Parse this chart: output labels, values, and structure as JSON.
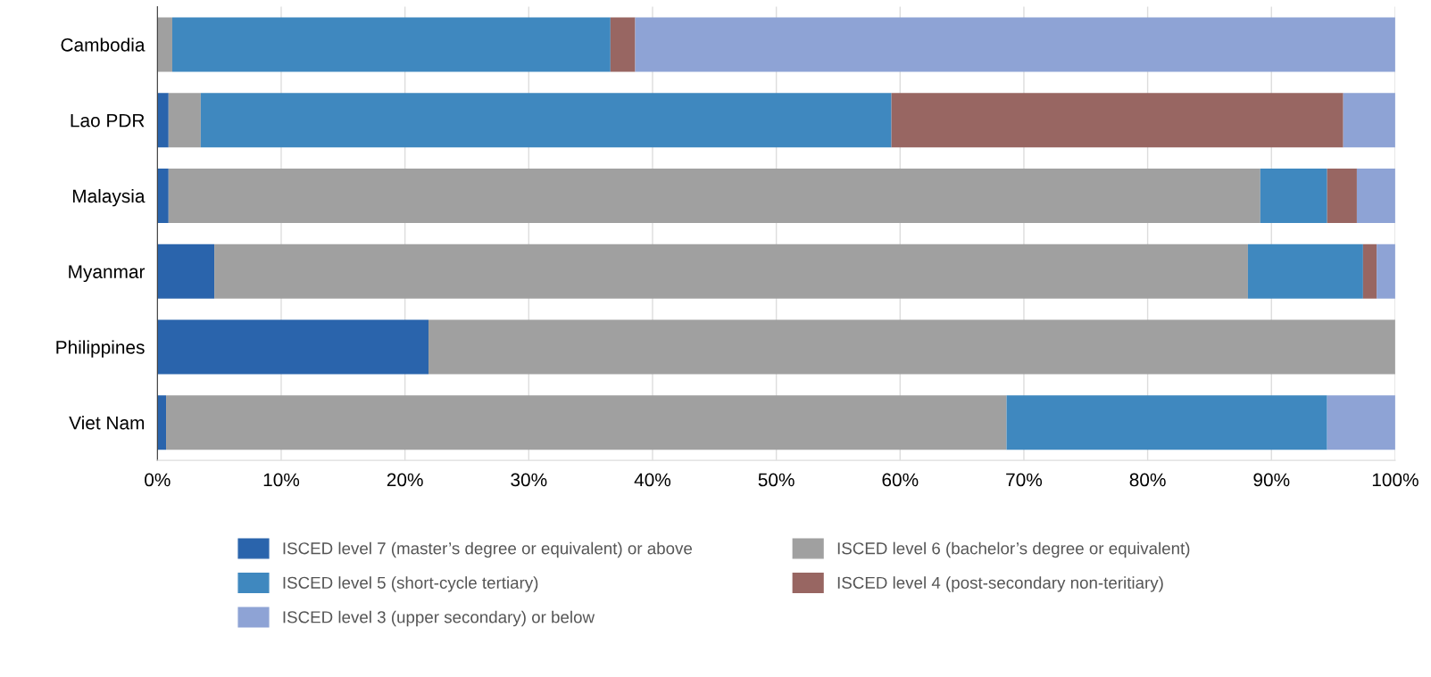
{
  "chart_data": {
    "type": "bar",
    "orientation": "horizontal",
    "stacked": true,
    "categories": [
      "Cambodia",
      "Lao PDR",
      "Malaysia",
      "Myanmar",
      "Philippines",
      "Viet Nam"
    ],
    "series": [
      {
        "name": "ISCED level 7 (master’s degree or equivalent) or above",
        "color": "#2a64ac",
        "values": [
          0,
          0.9,
          0.9,
          4.6,
          21.9,
          0.7
        ]
      },
      {
        "name": "ISCED level 6 (bachelor’s degree or equivalent)",
        "color": "#a0a0a0",
        "values": [
          1.2,
          2.6,
          88.2,
          83.5,
          78.1,
          67.9
        ]
      },
      {
        "name": "ISCED level 5 (short-cycle tertiary)",
        "color": "#3f88bf",
        "values": [
          35.4,
          55.8,
          5.4,
          9.3,
          0,
          25.9
        ]
      },
      {
        "name": "ISCED level 4 (post-secondary non-teritiary)",
        "color": "#986662",
        "values": [
          2.0,
          36.5,
          2.4,
          1.1,
          0,
          0
        ]
      },
      {
        "name": "ISCED level 3 (upper secondary) or below",
        "color": "#8ea3d5",
        "values": [
          61.4,
          4.2,
          3.1,
          1.5,
          0,
          5.5
        ]
      }
    ],
    "xlim": [
      0,
      100
    ],
    "xticks": [
      {
        "value": 0,
        "label": "0%"
      },
      {
        "value": 10,
        "label": "10%"
      },
      {
        "value": 20,
        "label": "20%"
      },
      {
        "value": 30,
        "label": "30%"
      },
      {
        "value": 40,
        "label": "40%"
      },
      {
        "value": 50,
        "label": "50%"
      },
      {
        "value": 60,
        "label": "60%"
      },
      {
        "value": 70,
        "label": "70%"
      },
      {
        "value": 80,
        "label": "80%"
      },
      {
        "value": 90,
        "label": "90%"
      },
      {
        "value": 100,
        "label": "100%"
      }
    ],
    "grid": "x",
    "legend": "bottom"
  }
}
